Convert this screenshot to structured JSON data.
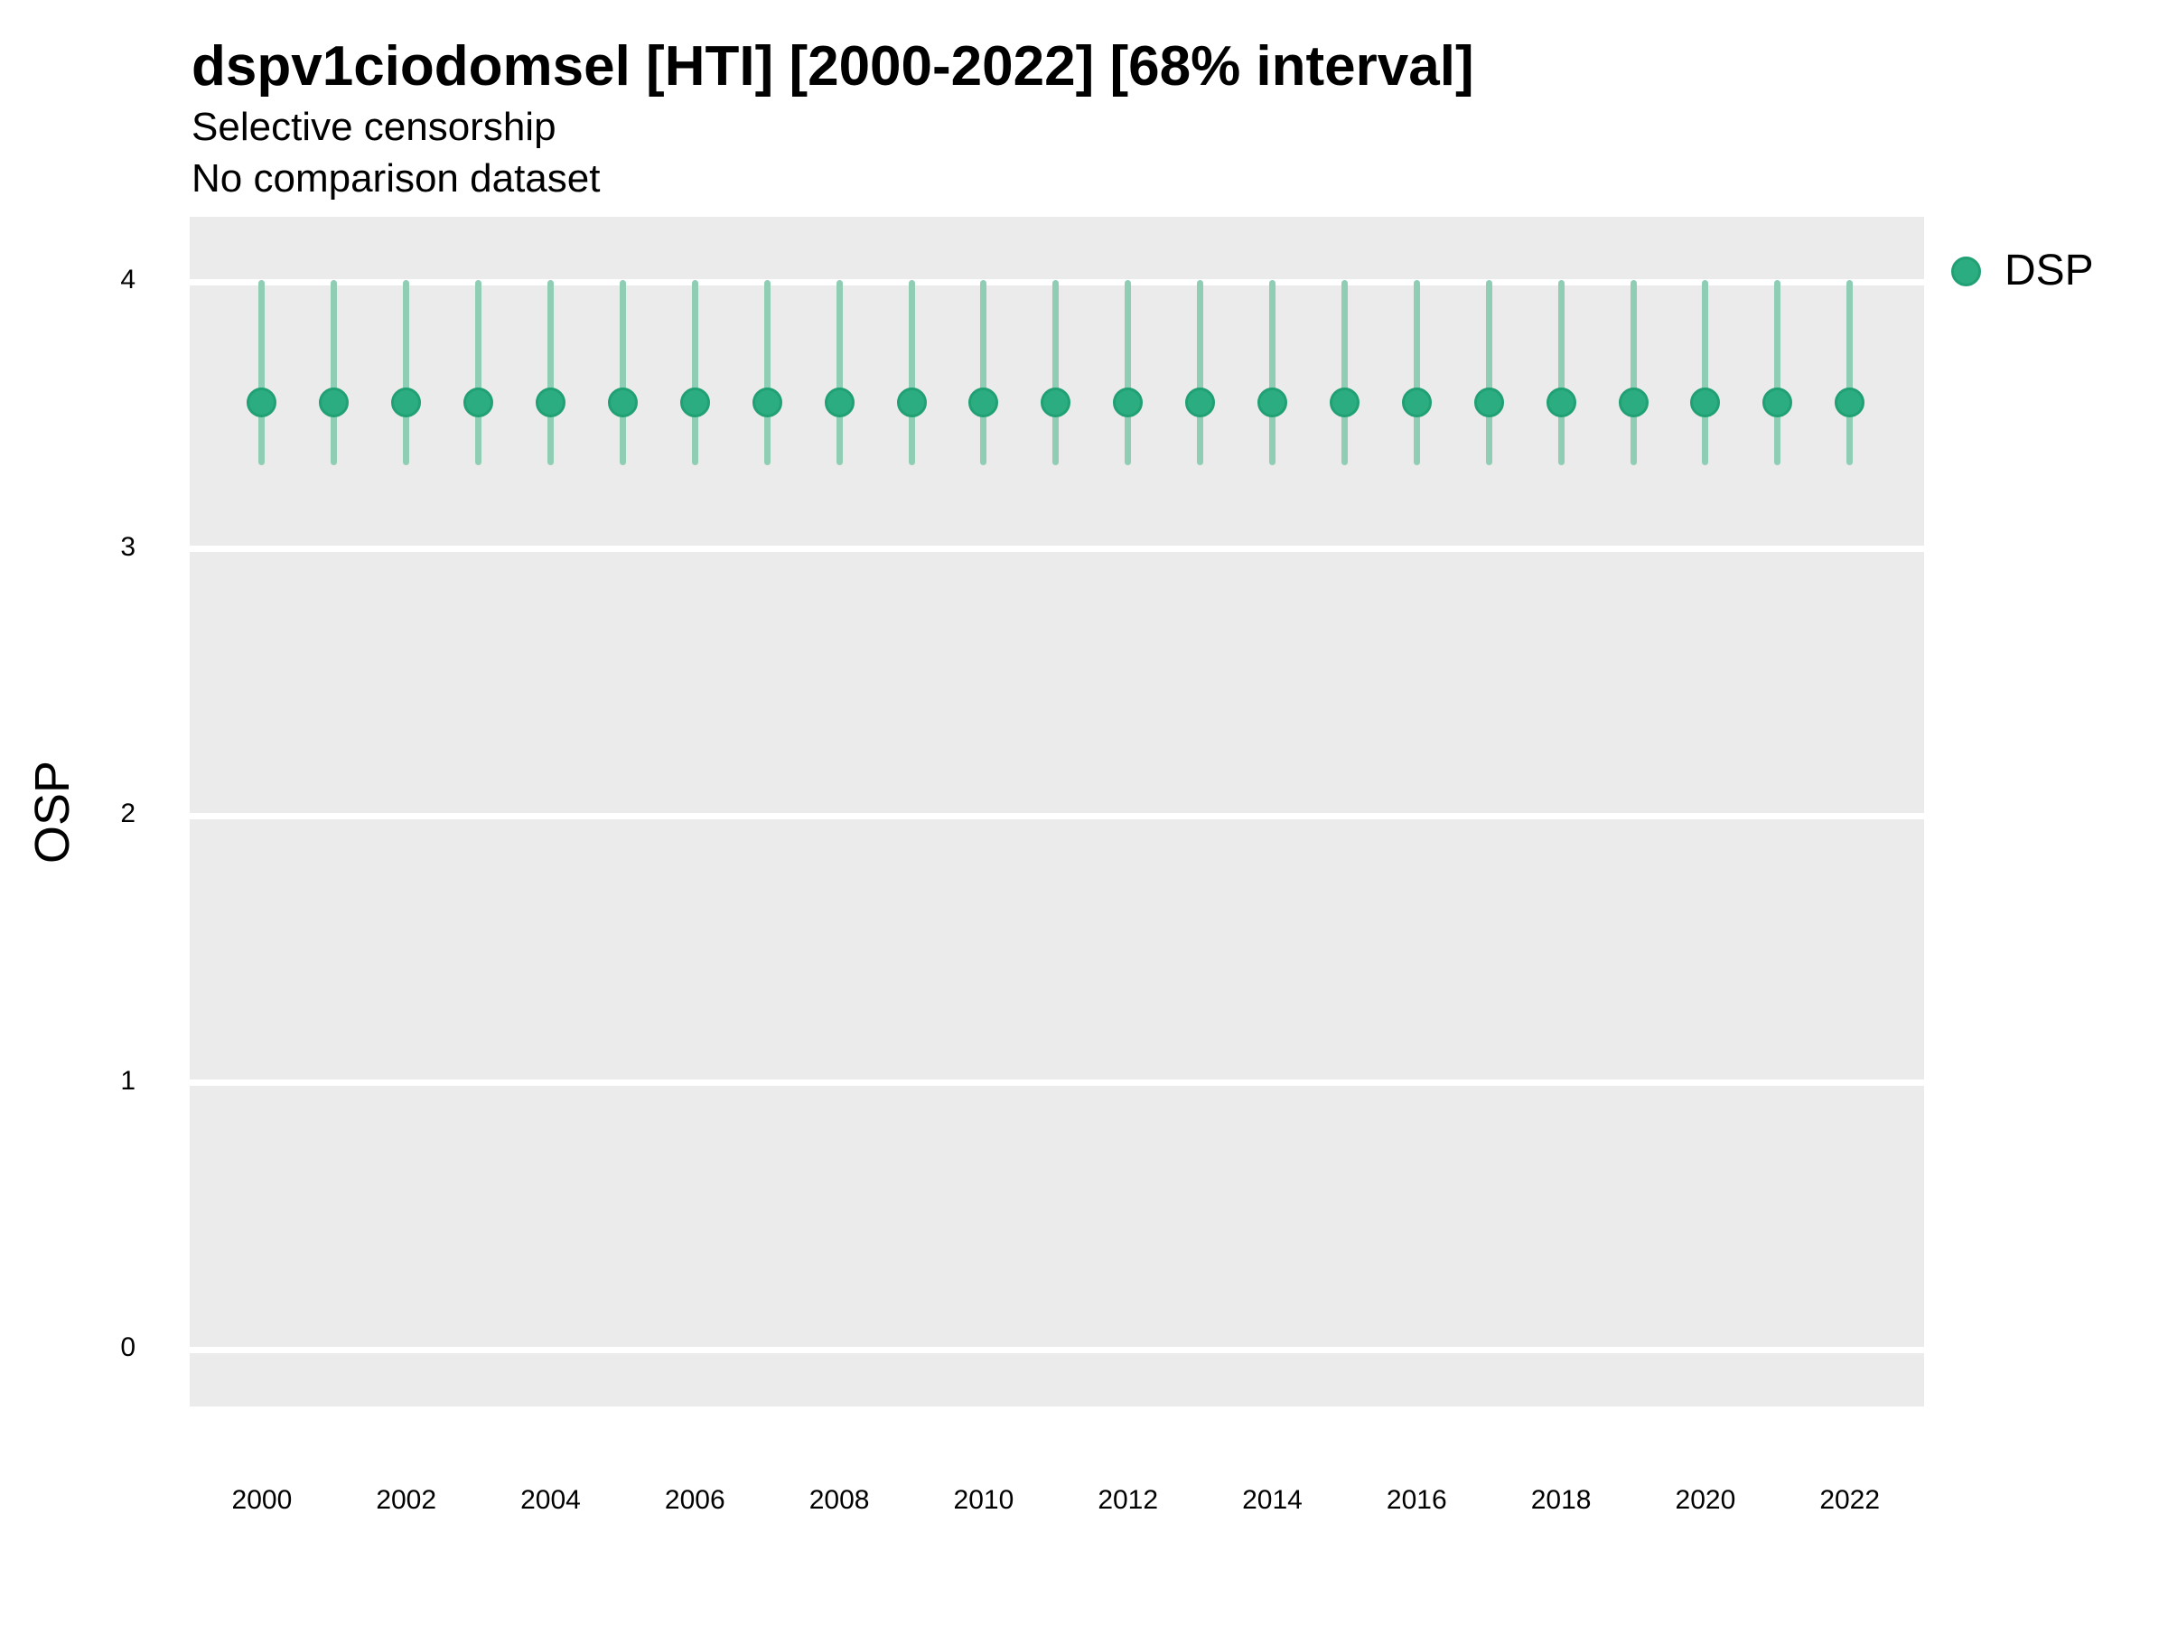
{
  "title": "dspv1ciodomsel [HTI] [2000-2022] [68% interval]",
  "subtitle_line1": "Selective censorship",
  "subtitle_line2": "No comparison dataset",
  "y_axis_label": "OSP",
  "legend": {
    "label": "DSP"
  },
  "colors": {
    "point_fill": "#2cad81",
    "point_stroke": "#21a073",
    "interval_bar": "#8fceb4",
    "panel_background": "#ebebeb",
    "gridline": "#ffffff",
    "text": "#000000"
  },
  "chart_data": {
    "type": "pointrange",
    "title": "dspv1ciodomsel [HTI] [2000-2022] [68% interval]",
    "subtitle": [
      "Selective censorship",
      "No comparison dataset"
    ],
    "xlabel": "",
    "ylabel": "OSP",
    "interval_level": "68%",
    "legend_position": "right",
    "grid": "horizontal-major-only",
    "x": [
      2000,
      2001,
      2002,
      2003,
      2004,
      2005,
      2006,
      2007,
      2008,
      2009,
      2010,
      2011,
      2012,
      2013,
      2014,
      2015,
      2016,
      2017,
      2018,
      2019,
      2020,
      2021,
      2022
    ],
    "series": [
      {
        "name": "DSP",
        "estimates": [
          3.55,
          3.55,
          3.55,
          3.55,
          3.55,
          3.55,
          3.55,
          3.55,
          3.55,
          3.55,
          3.55,
          3.55,
          3.55,
          3.55,
          3.55,
          3.55,
          3.55,
          3.55,
          3.55,
          3.55,
          3.55,
          3.55,
          3.55
        ],
        "lower": [
          3.32,
          3.32,
          3.32,
          3.32,
          3.32,
          3.32,
          3.32,
          3.32,
          3.32,
          3.32,
          3.32,
          3.32,
          3.32,
          3.32,
          3.32,
          3.32,
          3.32,
          3.32,
          3.32,
          3.32,
          3.32,
          3.32,
          3.32
        ],
        "upper": [
          4.0,
          4.0,
          4.0,
          4.0,
          4.0,
          4.0,
          4.0,
          4.0,
          4.0,
          4.0,
          4.0,
          4.0,
          4.0,
          4.0,
          4.0,
          4.0,
          4.0,
          4.0,
          4.0,
          4.0,
          4.0,
          4.0,
          4.0
        ]
      }
    ],
    "xlim": [
      1999.0,
      2023.03
    ],
    "ylim": [
      -0.213,
      4.244
    ],
    "yticks": [
      0,
      1,
      2,
      3,
      4
    ],
    "xticks": [
      2000,
      2002,
      2004,
      2006,
      2008,
      2010,
      2012,
      2014,
      2016,
      2018,
      2020,
      2022
    ]
  }
}
